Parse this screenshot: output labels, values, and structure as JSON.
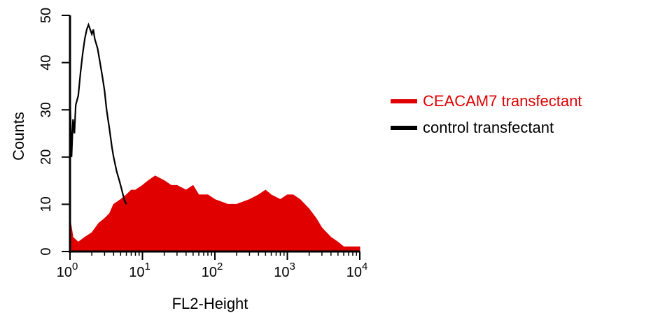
{
  "chart_data": {
    "type": "area",
    "xlabel": "FL2-Height",
    "ylabel": "Counts",
    "xscale": "log",
    "xlim": [
      1,
      10000
    ],
    "ylim": [
      0,
      50
    ],
    "x_ticks": [
      {
        "base": "10",
        "exp": "0"
      },
      {
        "base": "10",
        "exp": "1"
      },
      {
        "base": "10",
        "exp": "2"
      },
      {
        "base": "10",
        "exp": "3"
      },
      {
        "base": "10",
        "exp": "4"
      }
    ],
    "y_ticks": [
      "0",
      "10",
      "20",
      "30",
      "40",
      "50"
    ],
    "series": [
      {
        "name": "CEACAM7 transfectant",
        "color": "#e00000",
        "style": "filled",
        "x": [
          1.0,
          1.1,
          1.3,
          1.6,
          2.0,
          2.5,
          3.0,
          3.5,
          4.0,
          5.0,
          6.0,
          7.0,
          8.0,
          10,
          12,
          15,
          20,
          25,
          30,
          40,
          50,
          60,
          80,
          100,
          150,
          200,
          300,
          400,
          500,
          600,
          800,
          1000,
          1200,
          1500,
          2000,
          2500,
          3000,
          4000,
          5000,
          6000,
          8000,
          10000
        ],
        "y": [
          7,
          3,
          2,
          3,
          4,
          6,
          7,
          8,
          10,
          11,
          12,
          13,
          13,
          14,
          15,
          16,
          15,
          14,
          14,
          13,
          14,
          12,
          12,
          11,
          10,
          10,
          11,
          12,
          13,
          12,
          11,
          12,
          12,
          11,
          9,
          7,
          5,
          3,
          2,
          1,
          1,
          1
        ]
      },
      {
        "name": "control transfectant",
        "color": "#000000",
        "style": "line",
        "x": [
          1.0,
          1.05,
          1.1,
          1.15,
          1.2,
          1.3,
          1.4,
          1.5,
          1.6,
          1.7,
          1.8,
          1.9,
          2.0,
          2.1,
          2.2,
          2.4,
          2.6,
          2.8,
          3.0,
          3.2,
          3.5,
          3.8,
          4.0,
          4.4,
          4.8,
          5.2,
          5.6,
          6.0
        ],
        "y": [
          33,
          20,
          28,
          25,
          31,
          33,
          38,
          42,
          45,
          47,
          48,
          47,
          46,
          47,
          45,
          43,
          40,
          37,
          34,
          30,
          26,
          22,
          20,
          17,
          15,
          13,
          11,
          10
        ]
      }
    ]
  }
}
